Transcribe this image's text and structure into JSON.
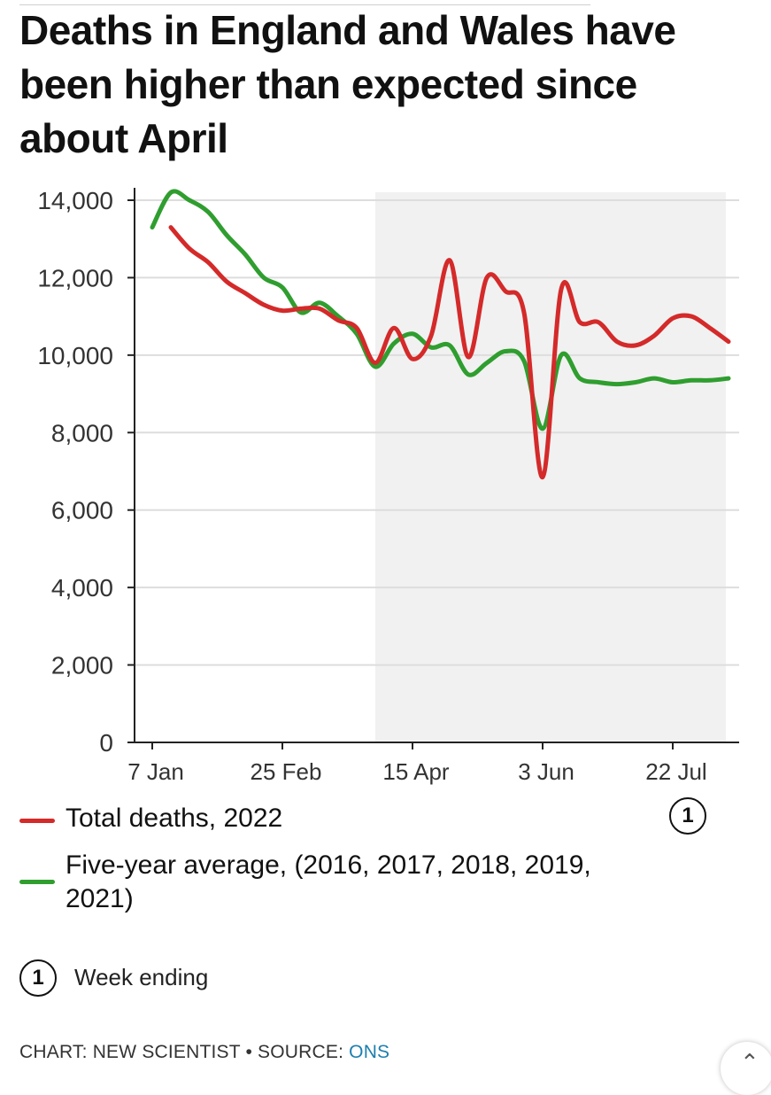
{
  "title": "Deaths in England and Wales have been higher than expected since about April",
  "chart_data": {
    "type": "line",
    "ylim": [
      0,
      14000
    ],
    "y_ticks": [
      0,
      2000,
      4000,
      6000,
      8000,
      10000,
      12000,
      14000
    ],
    "y_tick_labels": [
      "0",
      "2,000",
      "4,000",
      "6,000",
      "8,000",
      "10,000",
      "12,000",
      "14,000"
    ],
    "x_ticks": [
      "2022-01-07",
      "2022-02-25",
      "2022-04-15",
      "2022-06-03",
      "2022-07-22"
    ],
    "x_tick_labels": [
      "7 Jan",
      "25 Feb",
      "15 Apr",
      "3 Jun",
      "22 Jul"
    ],
    "highlight_range": [
      "2022-04-01",
      "2022-08-12"
    ],
    "grid": true,
    "legend": "bottom",
    "series": [
      {
        "name": "Total deaths, 2022",
        "color": "#d42a2a",
        "points": [
          [
            "2022-01-14",
            13300
          ],
          [
            "2022-01-21",
            12750
          ],
          [
            "2022-01-28",
            12400
          ],
          [
            "2022-02-04",
            11900
          ],
          [
            "2022-02-11",
            11600
          ],
          [
            "2022-02-18",
            11300
          ],
          [
            "2022-02-25",
            11150
          ],
          [
            "2022-03-04",
            11200
          ],
          [
            "2022-03-11",
            11200
          ],
          [
            "2022-03-18",
            10900
          ],
          [
            "2022-03-25",
            10700
          ],
          [
            "2022-04-01",
            9800
          ],
          [
            "2022-04-08",
            10700
          ],
          [
            "2022-04-15",
            9900
          ],
          [
            "2022-04-22",
            10500
          ],
          [
            "2022-04-29",
            12450
          ],
          [
            "2022-05-06",
            9950
          ],
          [
            "2022-05-13",
            12000
          ],
          [
            "2022-05-20",
            11650
          ],
          [
            "2022-05-27",
            11100
          ],
          [
            "2022-06-03",
            6850
          ],
          [
            "2022-06-10",
            11700
          ],
          [
            "2022-06-17",
            10850
          ],
          [
            "2022-06-24",
            10850
          ],
          [
            "2022-07-01",
            10350
          ],
          [
            "2022-07-08",
            10250
          ],
          [
            "2022-07-15",
            10500
          ],
          [
            "2022-07-22",
            10950
          ],
          [
            "2022-07-29",
            11000
          ],
          [
            "2022-08-05",
            10700
          ],
          [
            "2022-08-12",
            10350
          ]
        ]
      },
      {
        "name": "Five-year average, (2016, 2017, 2018, 2019, 2021)",
        "color": "#2f9e2f",
        "points": [
          [
            "2022-01-07",
            13300
          ],
          [
            "2022-01-14",
            14200
          ],
          [
            "2022-01-21",
            14000
          ],
          [
            "2022-01-28",
            13700
          ],
          [
            "2022-02-04",
            13100
          ],
          [
            "2022-02-11",
            12600
          ],
          [
            "2022-02-18",
            12000
          ],
          [
            "2022-02-25",
            11750
          ],
          [
            "2022-03-04",
            11100
          ],
          [
            "2022-03-11",
            11350
          ],
          [
            "2022-03-18",
            11000
          ],
          [
            "2022-03-25",
            10550
          ],
          [
            "2022-04-01",
            9700
          ],
          [
            "2022-04-08",
            10300
          ],
          [
            "2022-04-15",
            10550
          ],
          [
            "2022-04-22",
            10200
          ],
          [
            "2022-04-29",
            10250
          ],
          [
            "2022-05-06",
            9500
          ],
          [
            "2022-05-13",
            9800
          ],
          [
            "2022-05-20",
            10100
          ],
          [
            "2022-05-27",
            9850
          ],
          [
            "2022-06-03",
            8100
          ],
          [
            "2022-06-10",
            10000
          ],
          [
            "2022-06-17",
            9400
          ],
          [
            "2022-06-24",
            9300
          ],
          [
            "2022-07-01",
            9250
          ],
          [
            "2022-07-08",
            9300
          ],
          [
            "2022-07-15",
            9400
          ],
          [
            "2022-07-22",
            9300
          ],
          [
            "2022-07-29",
            9350
          ],
          [
            "2022-08-05",
            9350
          ],
          [
            "2022-08-12",
            9400
          ]
        ]
      }
    ]
  },
  "legend": {
    "total_label": "Total deaths, 2022",
    "average_label": "Five-year average, (2016, 2017, 2018, 2019, 2021)"
  },
  "note": {
    "marker": "1",
    "text": "Week ending"
  },
  "credit": {
    "chart_prefix": "CHART: NEW SCIENTIST • SOURCE: ",
    "source": "ONS"
  },
  "colors": {
    "red": "#d42a2a",
    "green": "#2f9e2f",
    "shade": "#f1f1f1",
    "link": "#1c7fb0"
  },
  "icons": {
    "corner": "chevron-up-icon"
  }
}
